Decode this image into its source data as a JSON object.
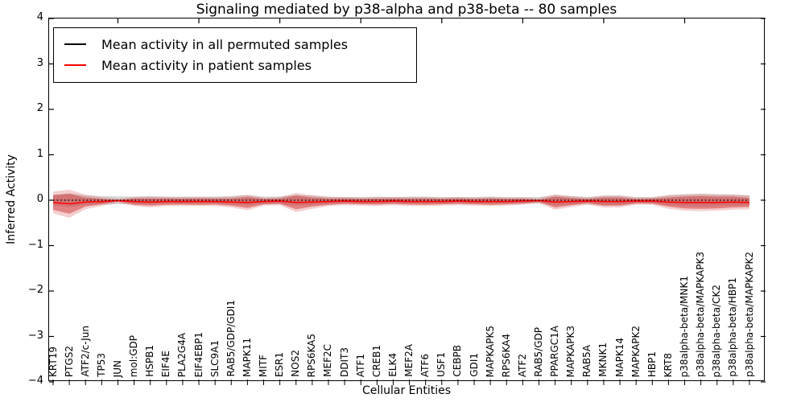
{
  "title": "Signaling mediated by p38-alpha and p38-beta -- 80 samples",
  "legend": {
    "items": [
      {
        "label": "Mean activity in all permuted samples",
        "color": "#000000"
      },
      {
        "label": "Mean activity in patient samples",
        "color": "#ff0000"
      }
    ]
  },
  "axes": {
    "xlabel": "Cellular Entities",
    "ylabel": "Inferred Activity",
    "yticks": [
      {
        "label": "4",
        "value": 4
      },
      {
        "label": "3",
        "value": 3
      },
      {
        "label": "2",
        "value": 2
      },
      {
        "label": "1",
        "value": 1
      },
      {
        "label": "0",
        "value": 0
      },
      {
        "label": "−1",
        "value": -1
      },
      {
        "label": "−2",
        "value": -2
      },
      {
        "label": "−3",
        "value": -3
      },
      {
        "label": "−4",
        "value": -4
      }
    ]
  },
  "chart_data": {
    "type": "line",
    "title": "Signaling mediated by p38-alpha and p38-beta -- 80 samples",
    "xlabel": "Cellular Entities",
    "ylabel": "Inferred Activity",
    "ylim": [
      -4,
      4
    ],
    "grid": false,
    "legend_position": "upper left",
    "categories": [
      "KRT19",
      "PTGS2",
      "ATF2/c-Jun",
      "TP53",
      "JUN",
      "mol:GDP",
      "HSPB1",
      "EIF4E",
      "PLA2G4A",
      "EIF4EBP1",
      "SLC9A1",
      "RAB5/GDP/GDI1",
      "MAPK11",
      "MITF",
      "ESR1",
      "NOS2",
      "RPS6KA5",
      "MEF2C",
      "DDIT3",
      "ATF1",
      "CREB1",
      "ELK4",
      "MEF2A",
      "ATF6",
      "USF1",
      "CEBPB",
      "GDI1",
      "MAPKAPK5",
      "RPS6KA4",
      "ATF2",
      "RAB5/GDP",
      "PPARGC1A",
      "MAPKAPK3",
      "RAB5A",
      "MKNK1",
      "MAPK14",
      "MAPKAPK2",
      "HBP1",
      "KRT8",
      "p38alpha-beta/MNK1",
      "p38alpha-beta/MAPKAPK3",
      "p38alpha-beta/CK2",
      "p38alpha-beta/HBP1",
      "p38alpha-beta/MAPKAPK2"
    ],
    "series": [
      {
        "name": "Mean activity in all permuted samples",
        "color": "#000000",
        "style": "dotted",
        "values": [
          0,
          0,
          0,
          0,
          0,
          0,
          0,
          0,
          0,
          0,
          0,
          0,
          0,
          0,
          0,
          0,
          0,
          0,
          0,
          0,
          0,
          0,
          0,
          0,
          0,
          0,
          0,
          0,
          0,
          0,
          0,
          0,
          0,
          0,
          0,
          0,
          0,
          0,
          0,
          0,
          0,
          0,
          0,
          0
        ]
      },
      {
        "name": "Mean activity in patient samples",
        "color": "#ff0000",
        "style": "solid",
        "values": [
          -0.05,
          -0.08,
          -0.04,
          -0.03,
          -0.01,
          -0.03,
          -0.04,
          -0.03,
          -0.03,
          -0.03,
          -0.03,
          -0.04,
          -0.05,
          -0.03,
          -0.02,
          -0.05,
          -0.04,
          -0.03,
          -0.02,
          -0.03,
          -0.03,
          -0.02,
          -0.03,
          -0.03,
          -0.03,
          -0.02,
          -0.03,
          -0.03,
          -0.03,
          -0.02,
          -0.01,
          -0.04,
          -0.03,
          -0.02,
          -0.03,
          -0.03,
          -0.02,
          -0.02,
          -0.04,
          -0.05,
          -0.05,
          -0.05,
          -0.04,
          -0.05
        ]
      }
    ],
    "bands": [
      {
        "name": "permuted-std-band",
        "center": "permuted",
        "color": "rgba(130,130,130,0.28)",
        "half_widths": [
          0.12,
          0.15,
          0.11,
          0.09,
          0.09,
          0.08,
          0.09,
          0.08,
          0.08,
          0.08,
          0.08,
          0.09,
          0.11,
          0.08,
          0.08,
          0.12,
          0.1,
          0.08,
          0.07,
          0.07,
          0.08,
          0.07,
          0.08,
          0.08,
          0.07,
          0.07,
          0.07,
          0.08,
          0.07,
          0.07,
          0.07,
          0.11,
          0.09,
          0.07,
          0.1,
          0.1,
          0.07,
          0.07,
          0.11,
          0.13,
          0.14,
          0.13,
          0.12,
          0.11
        ]
      },
      {
        "name": "patient-outer-band",
        "center": "patient",
        "color": "rgba(205,35,35,0.22)",
        "half_widths": [
          0.24,
          0.31,
          0.16,
          0.1,
          0.05,
          0.1,
          0.12,
          0.1,
          0.1,
          0.1,
          0.1,
          0.12,
          0.17,
          0.09,
          0.09,
          0.21,
          0.15,
          0.1,
          0.09,
          0.09,
          0.1,
          0.09,
          0.1,
          0.1,
          0.09,
          0.09,
          0.09,
          0.1,
          0.09,
          0.08,
          0.06,
          0.17,
          0.12,
          0.08,
          0.13,
          0.13,
          0.08,
          0.08,
          0.15,
          0.18,
          0.19,
          0.18,
          0.17,
          0.15
        ]
      },
      {
        "name": "patient-inner-band",
        "center": "patient",
        "color": "rgba(205,35,35,0.45)",
        "half_widths": [
          0.16,
          0.22,
          0.1,
          0.06,
          0.015,
          0.07,
          0.08,
          0.07,
          0.065,
          0.07,
          0.065,
          0.08,
          0.12,
          0.06,
          0.06,
          0.15,
          0.1,
          0.07,
          0.06,
          0.06,
          0.065,
          0.06,
          0.065,
          0.07,
          0.06,
          0.06,
          0.06,
          0.07,
          0.06,
          0.055,
          0.025,
          0.12,
          0.08,
          0.05,
          0.09,
          0.09,
          0.05,
          0.055,
          0.1,
          0.13,
          0.14,
          0.13,
          0.12,
          0.1
        ]
      }
    ],
    "top_tick_category_indices": [
      4,
      9,
      14,
      19,
      24,
      29,
      34,
      39
    ]
  }
}
